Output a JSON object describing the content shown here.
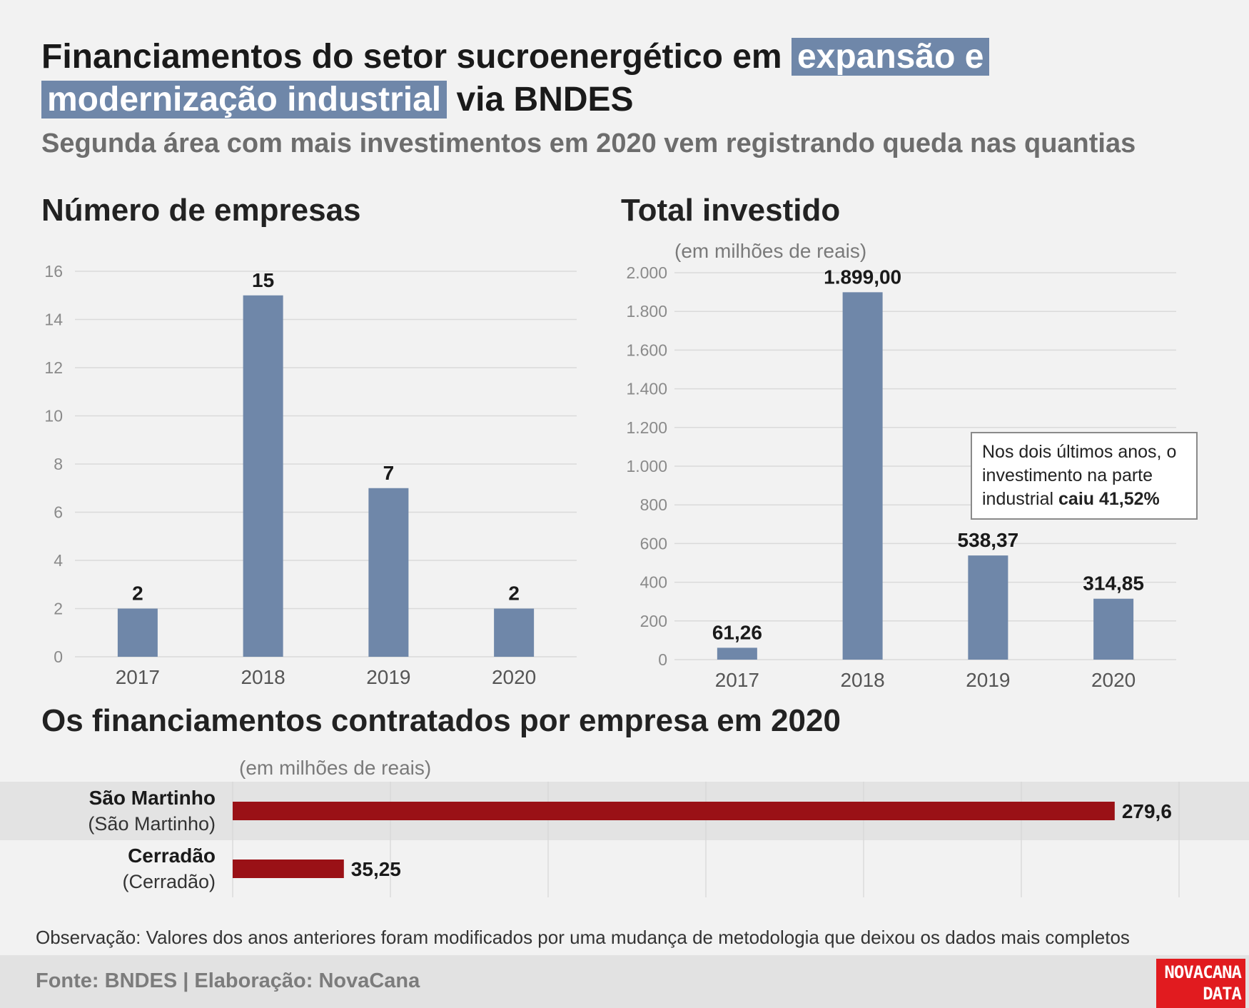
{
  "title": {
    "part1": "Financiamentos do setor sucroenergético em",
    "highlight1": "expansão e",
    "highlight2": "modernização industrial",
    "part2": "via BNDES"
  },
  "subtitle": "Segunda área com mais investimentos em 2020 vem registrando queda nas quantias",
  "chart_data": [
    {
      "type": "bar",
      "title": "Número de empresas",
      "categories": [
        "2017",
        "2018",
        "2019",
        "2020"
      ],
      "values": [
        2,
        15,
        7,
        2
      ],
      "labels": [
        "2",
        "15",
        "7",
        "2"
      ],
      "ylim": [
        0,
        16
      ],
      "yticks": [
        0,
        2,
        4,
        6,
        8,
        10,
        12,
        14,
        16
      ],
      "ytick_labels": [
        "0",
        "2",
        "4",
        "6",
        "8",
        "10",
        "12",
        "14",
        "16"
      ],
      "grid": true,
      "bar_color": "#6f87a9"
    },
    {
      "type": "bar",
      "title": "Total investido",
      "ylabel": "(em milhões de reais)",
      "categories": [
        "2017",
        "2018",
        "2019",
        "2020"
      ],
      "values": [
        61.26,
        1899.0,
        538.37,
        314.85
      ],
      "labels": [
        "61,26",
        "1.899,00",
        "538,37",
        "314,85"
      ],
      "ylim": [
        0,
        2000
      ],
      "yticks": [
        0,
        200,
        400,
        600,
        800,
        1000,
        1200,
        1400,
        1600,
        1800,
        2000
      ],
      "ytick_labels": [
        "0",
        "200",
        "400",
        "600",
        "800",
        "1.000",
        "1.200",
        "1.400",
        "1.600",
        "1.800",
        "2.000"
      ],
      "grid": true,
      "bar_color": "#6f87a9",
      "annotation": {
        "text": "Nos dois últimos anos, o investimento na parte industrial",
        "bold": "caiu 41,52%"
      }
    },
    {
      "type": "bar",
      "orientation": "horizontal",
      "title": "Os financiamentos contratados por empresa em 2020",
      "xlabel": "(em milhões de reais)",
      "categories": [
        {
          "name": "São Martinho",
          "sub": "(São Martinho)"
        },
        {
          "name": "Cerradão",
          "sub": "(Cerradão)"
        }
      ],
      "values": [
        279.6,
        35.25
      ],
      "labels": [
        "279,6",
        "35,25"
      ],
      "xlim": [
        0,
        300
      ],
      "grid": true,
      "bar_color": "#9a1116"
    }
  ],
  "note": "Observação: Valores dos anos anteriores foram modificados por uma mudança de metodologia que deixou os dados mais completos",
  "footer": "Fonte: BNDES | Elaboração: NovaCana",
  "logo": {
    "line1": "NOVACANA",
    "line2": "DATA"
  },
  "colors": {
    "bar": "#6f87a9",
    "hbar": "#9a1116",
    "logo": "#e11b1f",
    "highlight": "#6f87a9"
  }
}
